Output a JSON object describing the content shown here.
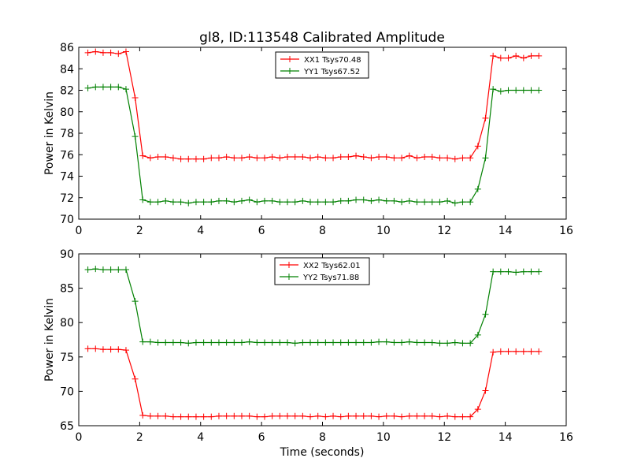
{
  "chart_data": [
    {
      "type": "line",
      "title": "gl8, ID:113548 Calibrated Amplitude",
      "xlabel": "",
      "ylabel": "Power in Kelvin",
      "xlim": [
        0,
        16
      ],
      "ylim": [
        70,
        86
      ],
      "xticks": [
        0,
        2,
        4,
        6,
        8,
        10,
        12,
        14,
        16
      ],
      "yticks": [
        70,
        72,
        74,
        76,
        78,
        80,
        82,
        84,
        86
      ],
      "xtick_labels": [
        "0",
        "2",
        "4",
        "6",
        "8",
        "10",
        "12",
        "14",
        "16"
      ],
      "ytick_labels": [
        "70",
        "72",
        "74",
        "76",
        "78",
        "80",
        "82",
        "84",
        "86"
      ],
      "grid": false,
      "legend": "top-center",
      "x": [
        0.3,
        0.55,
        0.8,
        1.05,
        1.3,
        1.55,
        1.85,
        2.1,
        2.35,
        2.6,
        2.85,
        3.1,
        3.35,
        3.6,
        3.85,
        4.1,
        4.35,
        4.6,
        4.85,
        5.1,
        5.35,
        5.6,
        5.85,
        6.1,
        6.35,
        6.6,
        6.85,
        7.1,
        7.35,
        7.6,
        7.85,
        8.1,
        8.35,
        8.6,
        8.85,
        9.1,
        9.35,
        9.6,
        9.85,
        10.1,
        10.35,
        10.6,
        10.85,
        11.1,
        11.35,
        11.6,
        11.85,
        12.1,
        12.35,
        12.6,
        12.85,
        13.1,
        13.35,
        13.6,
        13.85,
        14.1,
        14.35,
        14.6,
        14.85,
        15.1
      ],
      "series": [
        {
          "name": "XX1 Tsys70.48",
          "color": "#ff0000",
          "values": [
            85.5,
            85.6,
            85.5,
            85.5,
            85.4,
            85.6,
            81.3,
            75.9,
            75.7,
            75.8,
            75.8,
            75.7,
            75.6,
            75.6,
            75.6,
            75.6,
            75.7,
            75.7,
            75.8,
            75.7,
            75.7,
            75.8,
            75.7,
            75.7,
            75.8,
            75.7,
            75.8,
            75.8,
            75.8,
            75.7,
            75.8,
            75.7,
            75.7,
            75.8,
            75.8,
            75.9,
            75.8,
            75.7,
            75.8,
            75.8,
            75.7,
            75.7,
            75.9,
            75.7,
            75.8,
            75.8,
            75.7,
            75.7,
            75.6,
            75.7,
            75.7,
            76.8,
            79.4,
            85.2,
            85.0,
            85.0,
            85.2,
            85.0,
            85.2,
            85.2
          ]
        },
        {
          "name": "YY1 Tsys67.52",
          "color": "#008000",
          "values": [
            82.2,
            82.3,
            82.3,
            82.3,
            82.3,
            82.1,
            77.7,
            71.8,
            71.6,
            71.6,
            71.7,
            71.6,
            71.6,
            71.5,
            71.6,
            71.6,
            71.6,
            71.7,
            71.7,
            71.6,
            71.7,
            71.8,
            71.6,
            71.7,
            71.7,
            71.6,
            71.6,
            71.6,
            71.7,
            71.6,
            71.6,
            71.6,
            71.6,
            71.7,
            71.7,
            71.8,
            71.8,
            71.7,
            71.8,
            71.7,
            71.7,
            71.6,
            71.7,
            71.6,
            71.6,
            71.6,
            71.6,
            71.7,
            71.5,
            71.6,
            71.6,
            72.8,
            75.7,
            82.1,
            81.9,
            82.0,
            82.0,
            82.0,
            82.0,
            82.0
          ]
        }
      ]
    },
    {
      "type": "line",
      "title": "",
      "xlabel": "Time (seconds)",
      "ylabel": "Power in Kelvin",
      "xlim": [
        0,
        16
      ],
      "ylim": [
        65,
        90
      ],
      "xticks": [
        0,
        2,
        4,
        6,
        8,
        10,
        12,
        14,
        16
      ],
      "yticks": [
        65,
        70,
        75,
        80,
        85,
        90
      ],
      "xtick_labels": [
        "0",
        "2",
        "4",
        "6",
        "8",
        "10",
        "12",
        "14",
        "16"
      ],
      "ytick_labels": [
        "65",
        "70",
        "75",
        "80",
        "85",
        "90"
      ],
      "grid": false,
      "legend": "top-center",
      "x": [
        0.3,
        0.55,
        0.8,
        1.05,
        1.3,
        1.55,
        1.85,
        2.1,
        2.35,
        2.6,
        2.85,
        3.1,
        3.35,
        3.6,
        3.85,
        4.1,
        4.35,
        4.6,
        4.85,
        5.1,
        5.35,
        5.6,
        5.85,
        6.1,
        6.35,
        6.6,
        6.85,
        7.1,
        7.35,
        7.6,
        7.85,
        8.1,
        8.35,
        8.6,
        8.85,
        9.1,
        9.35,
        9.6,
        9.85,
        10.1,
        10.35,
        10.6,
        10.85,
        11.1,
        11.35,
        11.6,
        11.85,
        12.1,
        12.35,
        12.6,
        12.85,
        13.1,
        13.35,
        13.6,
        13.85,
        14.1,
        14.35,
        14.6,
        14.85,
        15.1
      ],
      "series": [
        {
          "name": "XX2 Tsys62.01",
          "color": "#ff0000",
          "values": [
            76.2,
            76.2,
            76.1,
            76.1,
            76.1,
            76.0,
            71.8,
            66.5,
            66.4,
            66.4,
            66.4,
            66.3,
            66.3,
            66.3,
            66.3,
            66.3,
            66.3,
            66.4,
            66.4,
            66.4,
            66.4,
            66.4,
            66.3,
            66.3,
            66.4,
            66.4,
            66.4,
            66.4,
            66.4,
            66.3,
            66.4,
            66.3,
            66.4,
            66.3,
            66.4,
            66.4,
            66.4,
            66.4,
            66.3,
            66.4,
            66.4,
            66.3,
            66.4,
            66.4,
            66.4,
            66.4,
            66.3,
            66.4,
            66.3,
            66.3,
            66.3,
            67.4,
            70.1,
            75.7,
            75.8,
            75.8,
            75.8,
            75.8,
            75.8,
            75.8
          ]
        },
        {
          "name": "YY2 Tsys71.88",
          "color": "#008000",
          "values": [
            87.7,
            87.8,
            87.7,
            87.7,
            87.7,
            87.7,
            83.1,
            77.2,
            77.2,
            77.1,
            77.1,
            77.1,
            77.1,
            77.0,
            77.1,
            77.1,
            77.1,
            77.1,
            77.1,
            77.1,
            77.1,
            77.2,
            77.1,
            77.1,
            77.1,
            77.1,
            77.1,
            77.0,
            77.1,
            77.1,
            77.1,
            77.1,
            77.1,
            77.1,
            77.1,
            77.1,
            77.1,
            77.1,
            77.2,
            77.2,
            77.1,
            77.1,
            77.2,
            77.1,
            77.1,
            77.1,
            77.0,
            77.0,
            77.1,
            77.0,
            77.0,
            78.2,
            81.2,
            87.4,
            87.4,
            87.4,
            87.3,
            87.4,
            87.4,
            87.4
          ]
        }
      ]
    }
  ]
}
